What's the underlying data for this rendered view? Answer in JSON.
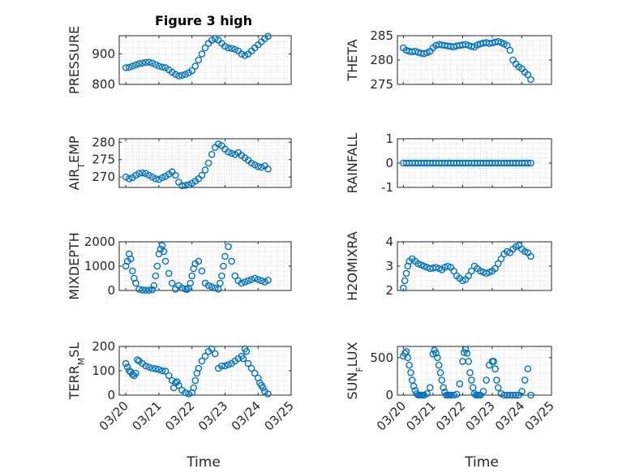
{
  "chart_data": [
    {
      "type": "scatter",
      "id": "pressure",
      "title": "Figure 3 high",
      "ylabel": "PRESSURE",
      "ylim": [
        800,
        960
      ],
      "yticks": [
        800,
        900
      ],
      "x": [
        20.0,
        20.1,
        20.2,
        20.3,
        20.4,
        20.5,
        20.6,
        20.7,
        20.8,
        20.9,
        21.0,
        21.1,
        21.2,
        21.3,
        21.4,
        21.5,
        21.6,
        21.7,
        21.8,
        21.9,
        22.0,
        22.1,
        22.2,
        22.3,
        22.4,
        22.5,
        22.6,
        22.7,
        22.8,
        22.9,
        23.0,
        23.1,
        23.2,
        23.3,
        23.4,
        23.5,
        23.6,
        23.7,
        23.8,
        23.9,
        24.0,
        24.1,
        24.2,
        24.3
      ],
      "y": [
        855,
        856,
        860,
        864,
        868,
        870,
        872,
        873,
        870,
        865,
        860,
        857,
        855,
        848,
        840,
        833,
        828,
        830,
        833,
        838,
        845,
        860,
        880,
        900,
        920,
        935,
        945,
        950,
        945,
        935,
        925,
        920,
        918,
        915,
        910,
        900,
        895,
        900,
        910,
        920,
        930,
        940,
        950,
        958
      ]
    },
    {
      "type": "scatter",
      "id": "theta",
      "ylabel": "THETA",
      "ylim": [
        275,
        285
      ],
      "yticks": [
        275,
        280,
        285
      ],
      "x": [
        20.0,
        20.1,
        20.2,
        20.3,
        20.4,
        20.5,
        20.6,
        20.7,
        20.8,
        20.9,
        21.0,
        21.1,
        21.2,
        21.3,
        21.4,
        21.5,
        21.6,
        21.7,
        21.8,
        21.9,
        22.0,
        22.1,
        22.2,
        22.3,
        22.4,
        22.5,
        22.6,
        22.7,
        22.8,
        22.9,
        23.0,
        23.1,
        23.2,
        23.3,
        23.4,
        23.5,
        23.6,
        23.7,
        23.8,
        23.9,
        24.0,
        24.1,
        24.2,
        24.3
      ],
      "y": [
        282.5,
        282,
        281.8,
        281.7,
        281.8,
        281.6,
        281.4,
        281.3,
        281.5,
        281.8,
        282.5,
        283,
        283.2,
        283.1,
        283,
        282.9,
        282.8,
        282.7,
        282.9,
        283,
        283.1,
        283.2,
        283,
        282.8,
        282.7,
        283.1,
        283.3,
        283.5,
        283.6,
        283.4,
        283.5,
        283.7,
        283.8,
        283.6,
        283.3,
        283.0,
        282.0,
        280.0,
        279.2,
        278.6,
        278.2,
        277.5,
        277.0,
        276.0
      ]
    },
    {
      "type": "scatter",
      "id": "air-temp",
      "ylabel": "AIR_TEMP",
      "ylim": [
        267,
        281
      ],
      "yticks": [
        270,
        275,
        280
      ],
      "x": [
        20.0,
        20.1,
        20.2,
        20.3,
        20.4,
        20.5,
        20.6,
        20.7,
        20.8,
        20.9,
        21.0,
        21.1,
        21.2,
        21.3,
        21.4,
        21.5,
        21.6,
        21.7,
        21.8,
        21.9,
        22.0,
        22.1,
        22.2,
        22.3,
        22.4,
        22.5,
        22.6,
        22.7,
        22.8,
        22.9,
        23.0,
        23.1,
        23.2,
        23.3,
        23.4,
        23.5,
        23.6,
        23.7,
        23.8,
        23.9,
        24.0,
        24.1,
        24.2,
        24.3
      ],
      "y": [
        270,
        269.5,
        269.8,
        270.5,
        271,
        271.2,
        271,
        270.5,
        270,
        269.5,
        269.3,
        269.8,
        270.2,
        270.8,
        271.5,
        270.5,
        268.5,
        267.5,
        267.6,
        267.8,
        268.2,
        268.8,
        269.5,
        270.5,
        272,
        274,
        276.5,
        278.5,
        279.5,
        279,
        278,
        277.2,
        276.8,
        276.5,
        277,
        276.2,
        275.5,
        274.8,
        274,
        273.5,
        273,
        272.8,
        273.2,
        272.3
      ]
    },
    {
      "type": "scatter",
      "id": "rainfall",
      "ylabel": "RAINFALL",
      "ylim": [
        -1,
        1
      ],
      "yticks": [
        -1,
        0,
        1
      ],
      "x": [
        20.0,
        20.1,
        20.2,
        20.3,
        20.4,
        20.5,
        20.6,
        20.7,
        20.8,
        20.9,
        21.0,
        21.1,
        21.2,
        21.3,
        21.4,
        21.5,
        21.6,
        21.7,
        21.8,
        21.9,
        22.0,
        22.1,
        22.2,
        22.3,
        22.4,
        22.5,
        22.6,
        22.7,
        22.8,
        22.9,
        23.0,
        23.1,
        23.2,
        23.3,
        23.4,
        23.5,
        23.6,
        23.7,
        23.8,
        23.9,
        24.0,
        24.1,
        24.2,
        24.3
      ],
      "y": [
        0,
        0,
        0,
        0,
        0,
        0,
        0,
        0,
        0,
        0,
        0,
        0,
        0,
        0,
        0,
        0,
        0,
        0,
        0,
        0,
        0,
        0,
        0,
        0,
        0,
        0,
        0,
        0,
        0,
        0,
        0,
        0,
        0,
        0,
        0,
        0,
        0,
        0,
        0,
        0,
        0,
        0,
        0,
        0
      ]
    },
    {
      "type": "scatter",
      "id": "mixdepth",
      "ylabel": "MIXDEPTH",
      "ylim": [
        0,
        2000
      ],
      "yticks": [
        0,
        1000,
        2000
      ],
      "x": [
        20.0,
        20.05,
        20.1,
        20.15,
        20.2,
        20.25,
        20.3,
        20.4,
        20.5,
        20.6,
        20.7,
        20.8,
        20.85,
        20.9,
        20.95,
        21.0,
        21.05,
        21.1,
        21.15,
        21.2,
        21.3,
        21.4,
        21.5,
        21.6,
        21.7,
        21.8,
        21.85,
        21.9,
        21.95,
        22.0,
        22.05,
        22.1,
        22.2,
        22.3,
        22.4,
        22.5,
        22.6,
        22.7,
        22.8,
        22.85,
        22.9,
        22.95,
        23.0,
        23.1,
        23.2,
        23.3,
        23.4,
        23.5,
        23.6,
        23.7,
        23.8,
        23.9,
        24.0,
        24.1,
        24.2,
        24.3
      ],
      "y": [
        1000,
        1200,
        1500,
        1300,
        800,
        500,
        300,
        50,
        20,
        10,
        10,
        30,
        200,
        600,
        1000,
        1500,
        1700,
        1850,
        1600,
        1200,
        700,
        300,
        50,
        200,
        100,
        60,
        40,
        100,
        300,
        600,
        900,
        1100,
        1200,
        800,
        300,
        200,
        150,
        100,
        50,
        300,
        600,
        1000,
        1400,
        1800,
        1200,
        600,
        400,
        300,
        350,
        400,
        450,
        500,
        450,
        400,
        350,
        420
      ]
    },
    {
      "type": "scatter",
      "id": "h2omixra",
      "ylabel": "H2OMIXRA",
      "ylim": [
        2,
        4
      ],
      "yticks": [
        2,
        3,
        4
      ],
      "x": [
        20.0,
        20.05,
        20.1,
        20.15,
        20.2,
        20.3,
        20.4,
        20.5,
        20.6,
        20.7,
        20.8,
        20.9,
        21.0,
        21.1,
        21.2,
        21.3,
        21.4,
        21.5,
        21.6,
        21.7,
        21.8,
        21.9,
        22.0,
        22.1,
        22.2,
        22.3,
        22.4,
        22.5,
        22.6,
        22.7,
        22.8,
        22.9,
        23.0,
        23.1,
        23.2,
        23.3,
        23.4,
        23.5,
        23.6,
        23.7,
        23.8,
        23.9,
        24.0,
        24.1,
        24.2,
        24.3
      ],
      "y": [
        2.1,
        2.4,
        2.7,
        3.0,
        3.2,
        3.3,
        3.2,
        3.1,
        3.05,
        3.0,
        2.95,
        2.9,
        2.92,
        2.95,
        2.9,
        2.85,
        2.95,
        3.0,
        2.95,
        2.8,
        2.6,
        2.5,
        2.4,
        2.45,
        2.6,
        2.8,
        3.0,
        2.9,
        2.8,
        2.75,
        2.7,
        2.75,
        2.8,
        2.9,
        3.1,
        3.3,
        3.5,
        3.6,
        3.55,
        3.7,
        3.8,
        3.85,
        3.7,
        3.6,
        3.55,
        3.4
      ]
    },
    {
      "type": "scatter",
      "id": "terr-msl",
      "ylabel": "TERR_MSL",
      "ylim": [
        0,
        200
      ],
      "yticks": [
        0,
        100,
        200
      ],
      "x": [
        20.0,
        20.05,
        20.1,
        20.15,
        20.2,
        20.25,
        20.3,
        20.35,
        20.4,
        20.5,
        20.6,
        20.7,
        20.8,
        20.9,
        21.0,
        21.1,
        21.2,
        21.3,
        21.4,
        21.45,
        21.5,
        21.55,
        21.6,
        21.7,
        21.8,
        21.9,
        22.0,
        22.05,
        22.1,
        22.15,
        22.2,
        22.3,
        22.4,
        22.5,
        22.6,
        22.7,
        22.8,
        22.9,
        23.0,
        23.1,
        23.2,
        23.3,
        23.4,
        23.5,
        23.55,
        23.6,
        23.65,
        23.7,
        23.8,
        23.9,
        24.0,
        24.05,
        24.1,
        24.15,
        24.2,
        24.3
      ],
      "y": [
        130,
        115,
        100,
        95,
        85,
        80,
        90,
        145,
        140,
        130,
        120,
        115,
        110,
        108,
        105,
        100,
        98,
        80,
        60,
        30,
        50,
        55,
        40,
        20,
        10,
        5,
        10,
        30,
        60,
        90,
        110,
        140,
        160,
        180,
        190,
        170,
        110,
        120,
        120,
        125,
        130,
        140,
        150,
        160,
        150,
        190,
        180,
        130,
        110,
        90,
        70,
        50,
        40,
        30,
        15,
        5
      ]
    },
    {
      "type": "scatter",
      "id": "sun-flux",
      "ylabel": "SUN_FLUX",
      "ylim": [
        0,
        650
      ],
      "yticks": [
        0,
        500
      ],
      "x": [
        20.0,
        20.05,
        20.1,
        20.15,
        20.2,
        20.25,
        20.3,
        20.35,
        20.4,
        20.45,
        20.5,
        20.55,
        20.6,
        20.65,
        20.7,
        20.8,
        20.9,
        21.0,
        21.05,
        21.1,
        21.15,
        21.2,
        21.25,
        21.3,
        21.35,
        21.4,
        21.45,
        21.5,
        21.55,
        21.6,
        21.7,
        21.8,
        21.9,
        22.0,
        22.05,
        22.1,
        22.15,
        22.2,
        22.25,
        22.3,
        22.35,
        22.4,
        22.45,
        22.5,
        22.55,
        22.6,
        22.7,
        22.8,
        22.9,
        23.0,
        23.05,
        23.1,
        23.15,
        23.2,
        23.3,
        23.4,
        23.5,
        23.6,
        23.7,
        23.8,
        23.9,
        24.0,
        24.1,
        24.2,
        24.3
      ],
      "y": [
        520,
        560,
        580,
        500,
        400,
        300,
        200,
        120,
        60,
        20,
        0,
        0,
        0,
        0,
        0,
        20,
        100,
        550,
        600,
        560,
        500,
        400,
        300,
        200,
        100,
        40,
        0,
        0,
        0,
        0,
        0,
        10,
        150,
        450,
        570,
        610,
        560,
        450,
        300,
        200,
        100,
        20,
        0,
        0,
        0,
        0,
        50,
        200,
        400,
        450,
        450,
        350,
        200,
        100,
        20,
        0,
        0,
        0,
        0,
        0,
        0,
        50,
        200,
        350,
        0
      ]
    }
  ],
  "xaxis": {
    "ticks": [
      20,
      21,
      22,
      23,
      24,
      25
    ],
    "ticklabels": [
      "03/20",
      "03/21",
      "03/22",
      "03/23",
      "03/24",
      "03/25"
    ],
    "xlim": [
      19.8,
      25.0
    ],
    "label": "Time"
  },
  "colors": {
    "marker": "#0072BD",
    "grid": "#c8c8c8",
    "axis": "#262626"
  }
}
